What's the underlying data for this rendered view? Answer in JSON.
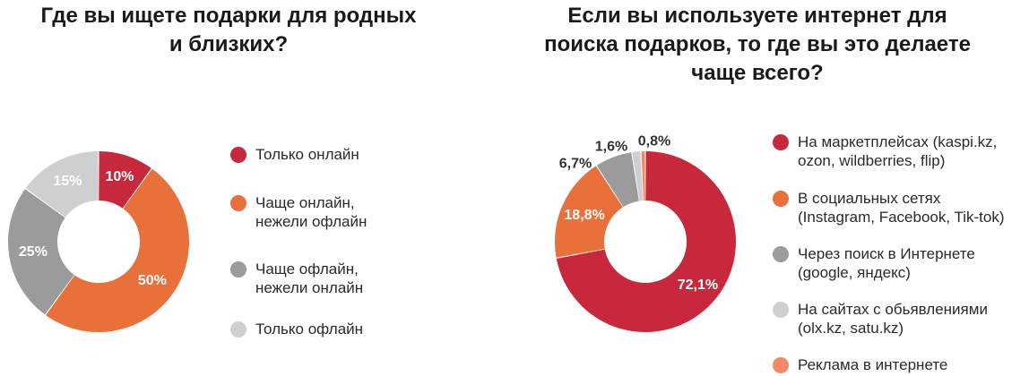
{
  "chart_data": [
    {
      "type": "pie",
      "title": "Где вы ищете подарки для родных и близких?",
      "title_lines": [
        "Где вы ищете подарки для родных",
        "и близких?"
      ],
      "donut": true,
      "slices": [
        {
          "label": "Только онлайн",
          "label_lines": [
            "Только онлайн"
          ],
          "value": 10,
          "value_label": "10%",
          "color": "#c8283c"
        },
        {
          "label": "Чаще онлайн, нежели офлайн",
          "label_lines": [
            "Чаще онлайн,",
            "нежели офлайн"
          ],
          "value": 50,
          "value_label": "50%",
          "color": "#e8703a"
        },
        {
          "label": "Чаще офлайн, нежели онлайн",
          "label_lines": [
            "Чаще офлайн,",
            "нежели онлайн"
          ],
          "value": 25,
          "value_label": "25%",
          "color": "#9b9b9b"
        },
        {
          "label": "Только офлайн",
          "label_lines": [
            "Только офлайн"
          ],
          "value": 15,
          "value_label": "15%",
          "color": "#cfcfcf"
        }
      ],
      "legend_position": "right"
    },
    {
      "type": "pie",
      "title": "Если вы используете интернет для поиска подарков, то где вы это делаете чаще всего?",
      "title_lines": [
        "Если вы используете интернет для",
        "поиска подарков, то где вы это делаете",
        "чаще всего?"
      ],
      "donut": true,
      "slices": [
        {
          "label": "На маркетплейсах (kaspi.kz, ozon, wildberries, flip)",
          "label_lines": [
            "На маркетплейсах (kaspi.kz,",
            "ozon, wildberries, flip)"
          ],
          "value": 72.1,
          "value_label": "72,1%",
          "color": "#c8283c"
        },
        {
          "label": "В социальных сетях (Instagram, Facebook, Tik-tok)",
          "label_lines": [
            "В социальных сетях",
            "(Instagram, Facebook, Tik-tok)"
          ],
          "value": 18.8,
          "value_label": "18,8%",
          "color": "#e8703a"
        },
        {
          "label": "Через поиск в Интернете (google, яндекс)",
          "label_lines": [
            "Через поиск в Интернете",
            "(google, яндекс)"
          ],
          "value": 6.7,
          "value_label": "6,7%",
          "color": "#9b9b9b"
        },
        {
          "label": "На сайтах с обьявлениями (olx.kz, satu.kz)",
          "label_lines": [
            "На сайтах с обьявлениями",
            "(olx.kz, satu.kz)"
          ],
          "value": 1.6,
          "value_label": "1,6%",
          "color": "#cfcfcf"
        },
        {
          "label": "Реклама в интернете",
          "label_lines": [
            "Реклама в интернете"
          ],
          "value": 0.8,
          "value_label": "0,8%",
          "color": "#f08a66"
        }
      ],
      "legend_position": "right"
    }
  ]
}
